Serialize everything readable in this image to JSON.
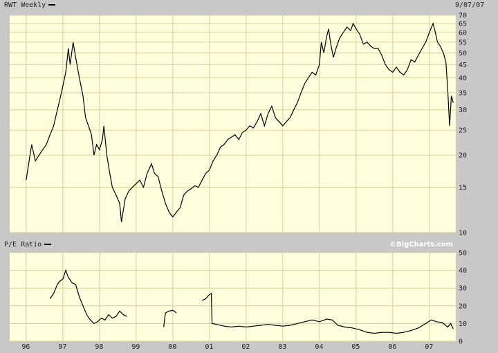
{
  "header": {
    "title": "RWT Weekly",
    "date": "9/07/07"
  },
  "lower_panel": {
    "title": "P/E Ratio",
    "copyright": "©BigCharts.com"
  },
  "colors": {
    "plot_bg": "#ffffdd",
    "grid": "#d8d098",
    "frame_bg": "#c8c8c8",
    "line": "#000000"
  },
  "chart_data": [
    {
      "type": "line",
      "scale": "log",
      "ylim": [
        10,
        70
      ],
      "yticks": [
        10,
        15,
        20,
        25,
        30,
        35,
        40,
        45,
        50,
        55,
        60,
        65,
        70
      ],
      "xticks": [
        "96",
        "97",
        "98",
        "99",
        "00",
        "01",
        "02",
        "03",
        "04",
        "05",
        "06",
        "07"
      ],
      "grid": true,
      "series": [
        {
          "values": [
            [
              1996.0,
              16
            ],
            [
              1996.08,
              19
            ],
            [
              1996.15,
              22
            ],
            [
              1996.25,
              19
            ],
            [
              1996.35,
              20
            ],
            [
              1996.45,
              21
            ],
            [
              1996.55,
              22
            ],
            [
              1996.65,
              24
            ],
            [
              1996.75,
              26
            ],
            [
              1996.85,
              30
            ],
            [
              1996.92,
              33
            ],
            [
              1997.0,
              37
            ],
            [
              1997.08,
              42
            ],
            [
              1997.15,
              52
            ],
            [
              1997.2,
              45
            ],
            [
              1997.28,
              55
            ],
            [
              1997.35,
              48
            ],
            [
              1997.45,
              40
            ],
            [
              1997.55,
              34
            ],
            [
              1997.62,
              28
            ],
            [
              1997.7,
              26
            ],
            [
              1997.78,
              24
            ],
            [
              1997.85,
              20
            ],
            [
              1997.92,
              22
            ],
            [
              1998.0,
              21
            ],
            [
              1998.08,
              23
            ],
            [
              1998.12,
              26
            ],
            [
              1998.2,
              20
            ],
            [
              1998.28,
              17
            ],
            [
              1998.35,
              15
            ],
            [
              1998.45,
              14
            ],
            [
              1998.55,
              13
            ],
            [
              1998.6,
              11
            ],
            [
              1998.7,
              13.5
            ],
            [
              1998.8,
              14.5
            ],
            [
              1998.9,
              15
            ],
            [
              1999.0,
              15.5
            ],
            [
              1999.1,
              16
            ],
            [
              1999.2,
              15
            ],
            [
              1999.3,
              17
            ],
            [
              1999.42,
              18.5
            ],
            [
              1999.5,
              17
            ],
            [
              1999.6,
              16.5
            ],
            [
              1999.7,
              14.5
            ],
            [
              1999.8,
              13
            ],
            [
              1999.9,
              12
            ],
            [
              2000.0,
              11.5
            ],
            [
              2000.1,
              12
            ],
            [
              2000.2,
              12.5
            ],
            [
              2000.3,
              14
            ],
            [
              2000.4,
              14.5
            ],
            [
              2000.5,
              14.8
            ],
            [
              2000.6,
              15.2
            ],
            [
              2000.7,
              15
            ],
            [
              2000.8,
              16
            ],
            [
              2000.9,
              17
            ],
            [
              2001.0,
              17.5
            ],
            [
              2001.1,
              19
            ],
            [
              2001.2,
              20
            ],
            [
              2001.3,
              21.5
            ],
            [
              2001.4,
              22
            ],
            [
              2001.5,
              23
            ],
            [
              2001.6,
              23.5
            ],
            [
              2001.7,
              24
            ],
            [
              2001.8,
              23
            ],
            [
              2001.9,
              24.5
            ],
            [
              2002.0,
              25
            ],
            [
              2002.1,
              26
            ],
            [
              2002.2,
              25.5
            ],
            [
              2002.3,
              27
            ],
            [
              2002.4,
              29
            ],
            [
              2002.5,
              26
            ],
            [
              2002.6,
              29
            ],
            [
              2002.7,
              31
            ],
            [
              2002.8,
              28
            ],
            [
              2002.9,
              27
            ],
            [
              2003.0,
              26
            ],
            [
              2003.1,
              27
            ],
            [
              2003.2,
              28
            ],
            [
              2003.3,
              30
            ],
            [
              2003.4,
              32
            ],
            [
              2003.5,
              35
            ],
            [
              2003.6,
              38
            ],
            [
              2003.7,
              40
            ],
            [
              2003.8,
              42
            ],
            [
              2003.9,
              41
            ],
            [
              2004.0,
              45
            ],
            [
              2004.05,
              55
            ],
            [
              2004.12,
              50
            ],
            [
              2004.2,
              58
            ],
            [
              2004.25,
              62
            ],
            [
              2004.3,
              55
            ],
            [
              2004.38,
              48
            ],
            [
              2004.45,
              52
            ],
            [
              2004.55,
              57
            ],
            [
              2004.65,
              60
            ],
            [
              2004.75,
              63
            ],
            [
              2004.85,
              61
            ],
            [
              2004.92,
              65
            ],
            [
              2005.0,
              62
            ],
            [
              2005.1,
              59
            ],
            [
              2005.2,
              54
            ],
            [
              2005.3,
              55
            ],
            [
              2005.4,
              53
            ],
            [
              2005.5,
              52
            ],
            [
              2005.6,
              52
            ],
            [
              2005.7,
              49
            ],
            [
              2005.8,
              45
            ],
            [
              2005.9,
              43
            ],
            [
              2006.0,
              42
            ],
            [
              2006.1,
              44
            ],
            [
              2006.2,
              42
            ],
            [
              2006.3,
              41
            ],
            [
              2006.4,
              43
            ],
            [
              2006.5,
              47
            ],
            [
              2006.6,
              46
            ],
            [
              2006.7,
              49
            ],
            [
              2006.8,
              52
            ],
            [
              2006.9,
              55
            ],
            [
              2007.0,
              60
            ],
            [
              2007.1,
              65
            ],
            [
              2007.15,
              61
            ],
            [
              2007.22,
              55
            ],
            [
              2007.3,
              53
            ],
            [
              2007.38,
              50
            ],
            [
              2007.45,
              46
            ],
            [
              2007.5,
              36
            ],
            [
              2007.55,
              26
            ],
            [
              2007.6,
              34
            ],
            [
              2007.65,
              32
            ]
          ]
        }
      ]
    },
    {
      "type": "line",
      "ylim": [
        0,
        50
      ],
      "yticks": [
        0,
        10,
        20,
        30,
        40,
        50
      ],
      "xticks": [
        "96",
        "97",
        "98",
        "99",
        "00",
        "01",
        "02",
        "03",
        "04",
        "05",
        "06",
        "07"
      ],
      "grid": true,
      "series": [
        {
          "values": [
            [
              1996.65,
              24
            ],
            [
              1996.75,
              27
            ],
            [
              1996.85,
              32
            ],
            [
              1996.92,
              34
            ],
            [
              1997.0,
              35
            ],
            [
              1997.08,
              40
            ],
            [
              1997.15,
              36
            ],
            [
              1997.25,
              33
            ],
            [
              1997.35,
              32
            ],
            [
              1997.45,
              25
            ],
            [
              1997.55,
              20
            ],
            [
              1997.65,
              15
            ],
            [
              1997.75,
              12
            ],
            [
              1997.85,
              10
            ],
            [
              1997.95,
              11
            ],
            [
              1998.05,
              13
            ],
            [
              1998.15,
              12
            ],
            [
              1998.25,
              15
            ],
            [
              1998.35,
              13
            ],
            [
              1998.45,
              14
            ],
            [
              1998.55,
              17
            ],
            [
              1998.65,
              15
            ],
            [
              1998.75,
              14
            ]
          ]
        },
        {
          "values": [
            [
              1999.75,
              8
            ],
            [
              1999.8,
              16
            ],
            [
              1999.9,
              17
            ],
            [
              2000.0,
              17.5
            ],
            [
              2000.1,
              16
            ]
          ]
        },
        {
          "values": [
            [
              2000.8,
              23
            ],
            [
              2000.9,
              24
            ],
            [
              2000.98,
              26
            ],
            [
              2001.05,
              27
            ],
            [
              2001.07,
              10
            ],
            [
              2001.2,
              9.5
            ],
            [
              2001.4,
              8.5
            ],
            [
              2001.6,
              8
            ],
            [
              2001.8,
              8.5
            ],
            [
              2002.0,
              8
            ],
            [
              2002.2,
              8.5
            ],
            [
              2002.4,
              9
            ],
            [
              2002.6,
              9.5
            ],
            [
              2002.8,
              9
            ],
            [
              2003.0,
              8.5
            ],
            [
              2003.2,
              9
            ],
            [
              2003.4,
              10
            ],
            [
              2003.6,
              11
            ],
            [
              2003.8,
              12
            ],
            [
              2004.0,
              11
            ],
            [
              2004.2,
              12.5
            ],
            [
              2004.35,
              12
            ],
            [
              2004.5,
              9
            ],
            [
              2004.7,
              8
            ],
            [
              2004.9,
              7.5
            ],
            [
              2005.1,
              6.5
            ],
            [
              2005.3,
              5
            ],
            [
              2005.5,
              4.5
            ],
            [
              2005.7,
              5
            ],
            [
              2005.9,
              5
            ],
            [
              2006.1,
              4.5
            ],
            [
              2006.3,
              5
            ],
            [
              2006.5,
              6
            ],
            [
              2006.7,
              7.5
            ],
            [
              2006.9,
              10
            ],
            [
              2007.05,
              12
            ],
            [
              2007.2,
              11
            ],
            [
              2007.35,
              10.5
            ],
            [
              2007.5,
              8
            ],
            [
              2007.58,
              10
            ],
            [
              2007.65,
              7
            ]
          ]
        }
      ]
    }
  ]
}
